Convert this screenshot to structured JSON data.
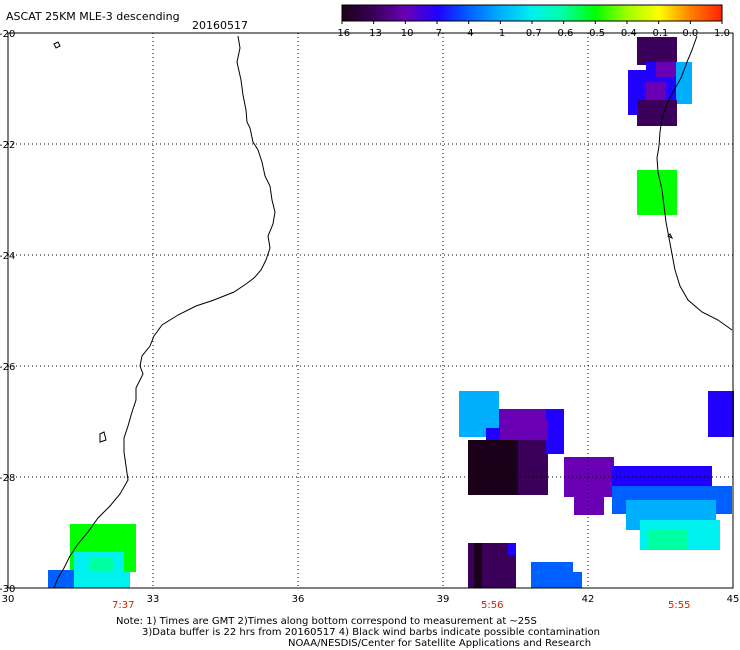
{
  "title": "ASCAT 25KM MLE-3 descending",
  "date": "20160517",
  "colorbar": {
    "labels": [
      "-16",
      "-13",
      "-10",
      "-7",
      "-4",
      "-1",
      "-0.7",
      "-0.6",
      "-0.5",
      "-0.4",
      "-0.1",
      "0.0",
      "1.0"
    ],
    "colors": [
      "#1a0018",
      "#3a005a",
      "#6a00b4",
      "#2000ff",
      "#0060ff",
      "#00b0ff",
      "#00f0f0",
      "#00ffa0",
      "#00ff00",
      "#a0ff00",
      "#ffff00",
      "#ff8000",
      "#ff2000"
    ]
  },
  "axes": {
    "lat_labels": [
      "-20",
      "-22",
      "-24",
      "-26",
      "-28",
      "-30"
    ],
    "lon_labels": [
      "30",
      "33",
      "36",
      "39",
      "42",
      "45"
    ]
  },
  "times": [
    "7:37",
    "5:56",
    "5:55"
  ],
  "notes": [
    "Note: 1) Times are GMT 2)Times along bottom correspond to measurement at ~25S",
    "3)Data buffer is 22 hrs from 20160517 4) Black wind barbs indicate possible contamination",
    "NOAA/NESDIS/Center for Satellite Applications and Research"
  ]
}
